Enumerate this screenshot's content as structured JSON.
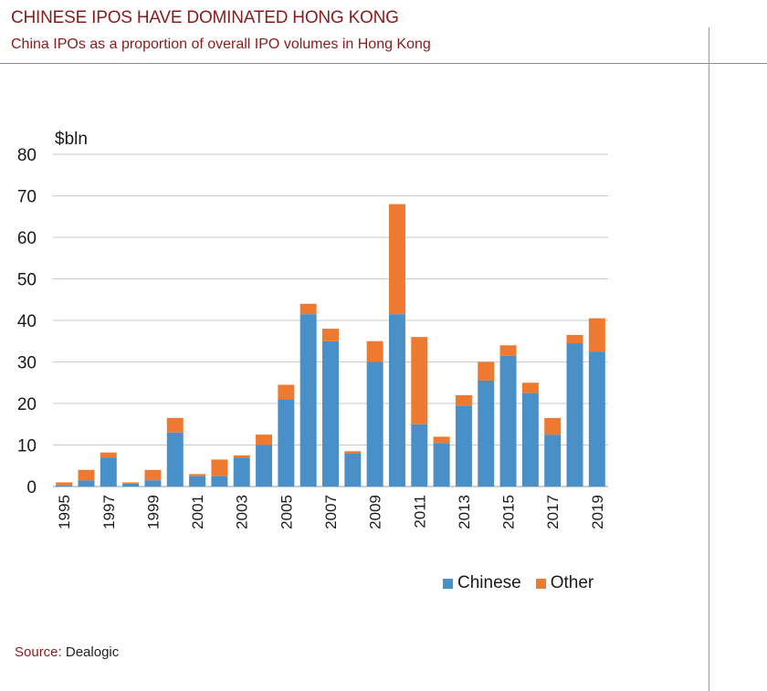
{
  "header": {
    "title": "CHINESE IPOS HAVE DOMINATED HONG KONG",
    "subtitle": "China IPOs as a proportion of overall IPO volumes in Hong Kong"
  },
  "footer": {
    "source_label": "Source:",
    "source_text": "Dealogic"
  },
  "colors": {
    "chinese": "#4a90c8",
    "other": "#ee7a32",
    "grid": "#c8c8c8",
    "accent": "#8b1a1a"
  },
  "chart_data": {
    "type": "bar",
    "stacked": true,
    "unit_label": "$bln",
    "categories": [
      "1995",
      "1996",
      "1997",
      "1998",
      "1999",
      "2000",
      "2001",
      "2002",
      "2003",
      "2004",
      "2005",
      "2006",
      "2007",
      "2008",
      "2009",
      "2010",
      "2011",
      "2012",
      "2013",
      "2014",
      "2015",
      "2016",
      "2017",
      "2018",
      "2019"
    ],
    "x_tick_labels": [
      "1995",
      "",
      "1997",
      "",
      "1999",
      "",
      "2001",
      "",
      "2003",
      "",
      "2005",
      "",
      "2007",
      "",
      "2009",
      "",
      "2011",
      "",
      "2013",
      "",
      "2015",
      "",
      "2017",
      "",
      "2019"
    ],
    "series": [
      {
        "name": "Chinese",
        "color": "#4a90c8",
        "values": [
          0.3,
          1.5,
          7.0,
          0.7,
          1.5,
          13.0,
          2.5,
          2.5,
          7.0,
          10.0,
          21.0,
          41.5,
          35.0,
          8.0,
          30.0,
          41.5,
          15.0,
          10.5,
          19.5,
          25.5,
          31.5,
          22.5,
          12.5,
          34.5,
          32.5
        ]
      },
      {
        "name": "Other",
        "color": "#ee7a32",
        "values": [
          0.7,
          2.5,
          1.2,
          0.3,
          2.5,
          3.5,
          0.5,
          4.0,
          0.5,
          2.5,
          3.5,
          2.5,
          3.0,
          0.5,
          5.0,
          26.5,
          21.0,
          1.5,
          2.5,
          4.5,
          2.5,
          2.5,
          4.0,
          2.0,
          8.0
        ]
      }
    ],
    "yticks": [
      0,
      10,
      20,
      30,
      40,
      50,
      60,
      70,
      80
    ],
    "ylim": [
      0,
      80
    ],
    "grid": true,
    "legend_position": "bottom-right"
  }
}
